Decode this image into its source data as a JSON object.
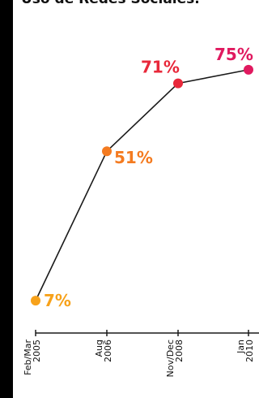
{
  "page": {
    "title": "Uso de Redes Sociales."
  },
  "colors": {
    "background": "#000000",
    "panel": "#ffffff",
    "line": "#1a1a1a",
    "axis": "#1a1a1a",
    "tick_text": "#111111"
  },
  "chart_data": {
    "type": "line",
    "title": "Uso de Redes Sociales.",
    "xlabel": "",
    "ylabel": "",
    "ylim": [
      0,
      80
    ],
    "grid": false,
    "legend": "none",
    "categories": [
      "Feb/Mar 2005",
      "Aug 2006",
      "Nov/Dec 2008",
      "Jan 2010"
    ],
    "x_tick_labels": [
      [
        "Feb/Mar",
        "2005"
      ],
      [
        "Aug",
        "2006"
      ],
      [
        "Nov/Dec",
        "2008"
      ],
      [
        "Jan",
        "2010"
      ]
    ],
    "series": [
      {
        "values": [
          7,
          51,
          71,
          75
        ],
        "labels": [
          "7%",
          "51%",
          "71%",
          "75%"
        ],
        "point_colors": [
          "#f7a21b",
          "#f47b20",
          "#e8283a",
          "#e0195f"
        ]
      }
    ]
  }
}
